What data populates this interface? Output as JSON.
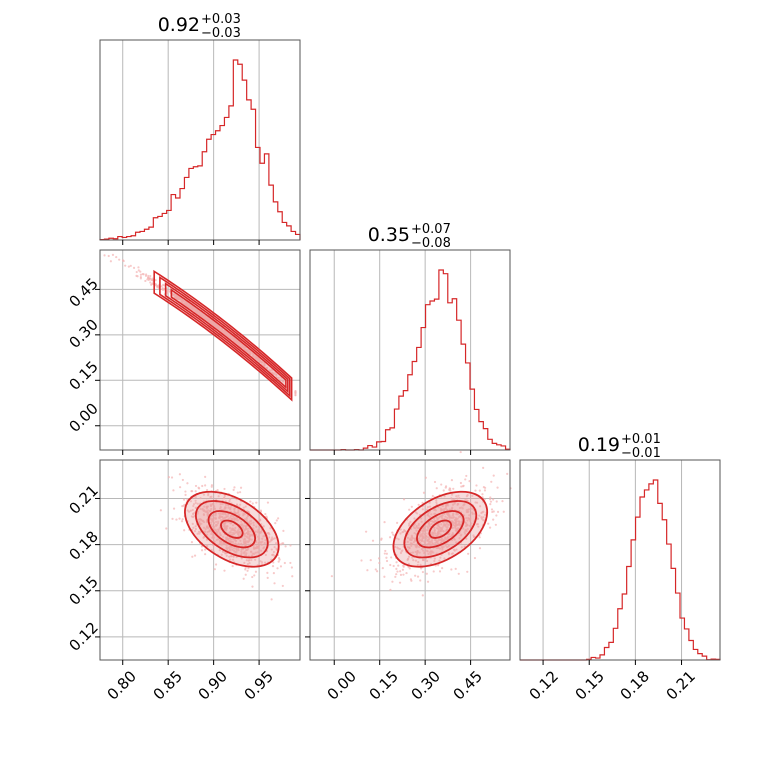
{
  "chart_data": {
    "type": "corner",
    "colors": {
      "accent": "#d62728",
      "fill": "#e89a9a",
      "scatter": "#f3b3b3",
      "grid": "#b8b8b8",
      "frame": "#555555"
    },
    "grid": true,
    "parameters": [
      {
        "id": "p0",
        "range": [
          0.775,
          0.995
        ],
        "ticks": [
          0.8,
          0.85,
          0.9,
          0.95
        ],
        "tick_labels": [
          "0.80",
          "0.85",
          "0.90",
          "0.95"
        ]
      },
      {
        "id": "p1",
        "range": [
          -0.08,
          0.58
        ],
        "ticks": [
          0.0,
          0.15,
          0.3,
          0.45
        ],
        "tick_labels": [
          "0.00",
          "0.15",
          "0.30",
          "0.45"
        ]
      },
      {
        "id": "p2",
        "range": [
          0.105,
          0.235
        ],
        "ticks": [
          0.12,
          0.15,
          0.18,
          0.21
        ],
        "tick_labels": [
          "0.12",
          "0.15",
          "0.18",
          "0.21"
        ]
      }
    ],
    "titles": [
      {
        "value": "0.92",
        "upper": "+0.03",
        "lower": "−0.03"
      },
      {
        "value": "0.35",
        "upper": "+0.07",
        "lower": "−0.08"
      },
      {
        "value": "0.19",
        "upper": "+0.01",
        "lower": "−0.01"
      }
    ],
    "marginals": [
      {
        "type": "step-histogram",
        "param": "p0",
        "median": 0.92,
        "spread": 0.027,
        "skew": -0.6
      },
      {
        "type": "step-histogram",
        "param": "p1",
        "median": 0.35,
        "spread": 0.07,
        "skew": -0.2
      },
      {
        "type": "step-histogram",
        "param": "p2",
        "median": 0.19,
        "spread": 0.012,
        "skew": 0.0
      }
    ],
    "pairs": [
      {
        "x": "p0",
        "y": "p1",
        "shape": "narrow curved ridge",
        "from": [
          0.78,
          0.57
        ],
        "to": [
          0.99,
          0.17
        ]
      },
      {
        "x": "p0",
        "y": "p2",
        "shape": "ellipse",
        "center": [
          0.92,
          0.19
        ],
        "correlation": "negative"
      },
      {
        "x": "p1",
        "y": "p2",
        "shape": "ellipse",
        "center": [
          0.35,
          0.19
        ],
        "correlation": "positive"
      }
    ]
  }
}
